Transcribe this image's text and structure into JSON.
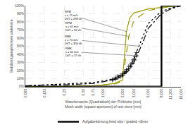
{
  "chart_data": {
    "type": "line",
    "xlabel": "Maschenweite (Quadratloch) der Prüfsiebe [mm]\nMesh width (square apertures) of test sieve [mm]",
    "ylabel": "Siebdürckgänge/screen undersize",
    "log": "x",
    "grid": true,
    "legend": "bottom",
    "xlim": [
      0.063,
      16.0
    ],
    "ylim": [
      0,
      100
    ],
    "xticks": [
      {
        "value": 0.063,
        "label": "0,063"
      },
      {
        "value": 0.125,
        "label": "0,125"
      },
      {
        "value": 0.25,
        "label": "0,25"
      },
      {
        "value": 0.5,
        "label": "0,50"
      },
      {
        "value": 0.71,
        "label": "0,71"
      },
      {
        "value": 1.0,
        "label": "1,000"
      },
      {
        "value": 2.0,
        "label": "2,000"
      },
      {
        "value": 3.0,
        "label": "3,000"
      },
      {
        "value": 5.0,
        "label": "5,000"
      },
      {
        "value": 8.0,
        "label": "8,000"
      },
      {
        "value": 11.2,
        "label": "11,200"
      },
      {
        "value": 16.0,
        "label": "16,000"
      }
    ],
    "yticks": [
      {
        "value": 0,
        "label": "0%"
      },
      {
        "value": 10,
        "label": "10%"
      },
      {
        "value": 20,
        "label": "20%"
      },
      {
        "value": 30,
        "label": "30%"
      },
      {
        "value": 40,
        "label": "40%"
      },
      {
        "value": 50,
        "label": "50%"
      },
      {
        "value": 60,
        "label": "60%"
      },
      {
        "value": 70,
        "label": "70%"
      },
      {
        "value": 80,
        "label": "80%"
      },
      {
        "value": 90,
        "label": "90%"
      },
      {
        "value": 100,
        "label": "100%"
      }
    ],
    "series": [
      {
        "type": "line",
        "color": "#9b9b00",
        "line_style": "solid",
        "x": [
          0.063,
          0.125,
          0.25,
          0.5,
          0.71,
          1.0,
          1.5,
          2.0,
          2.3,
          2.6,
          3.0,
          5.0,
          8.0,
          11.2,
          16.0
        ],
        "values": [
          0,
          0,
          0,
          1,
          1,
          2,
          4,
          8,
          68,
          85,
          91,
          96,
          98,
          99,
          100
        ]
      },
      {
        "type": "line",
        "color": "#9b9b00",
        "line_style": "dashed",
        "x": [
          0.063,
          0.125,
          0.25,
          0.5,
          0.71,
          1.0,
          1.5,
          2.0,
          2.5,
          3.0,
          5.0,
          8.0,
          11.2,
          16.0
        ],
        "values": [
          0,
          0,
          0,
          1,
          1,
          2,
          3,
          7,
          62,
          82,
          94,
          97,
          99,
          100
        ]
      },
      {
        "type": "line",
        "color": "#000000",
        "line_style": "dotted",
        "x": [
          0.063,
          0.125,
          0.25,
          0.5,
          0.71,
          1.0,
          1.5,
          2.0,
          2.5,
          3.0,
          4.0,
          5.0,
          8.0,
          11.2,
          16.0
        ],
        "values": [
          1,
          2,
          3,
          4,
          5,
          7,
          10,
          15,
          22,
          35,
          60,
          78,
          93,
          97,
          100
        ]
      },
      {
        "type": "line",
        "color": "#000000",
        "line_style": "dashdot",
        "x": [
          0.063,
          0.125,
          0.25,
          0.5,
          0.71,
          1.0,
          1.5,
          2.0,
          2.5,
          3.0,
          4.0,
          5.0,
          8.0,
          11.2,
          16.0
        ],
        "values": [
          1,
          2,
          2,
          3,
          4,
          6,
          9,
          13,
          20,
          30,
          52,
          72,
          90,
          96,
          100
        ]
      },
      {
        "type": "line",
        "name": "Aufgabekörnung feed size / graded +8mm",
        "color": "#000000",
        "line_style": "solid",
        "x": [
          0.063,
          0.125,
          0.25,
          0.5,
          0.71,
          1.0,
          2.0,
          3.0,
          5.0,
          8.0,
          8.001,
          11.2,
          16.0
        ],
        "values": [
          0,
          0,
          0,
          0,
          0,
          0,
          0,
          0,
          0,
          0,
          100,
          100,
          100
        ]
      },
      {
        "type": "scatter",
        "marker": "cross",
        "color": "#000000",
        "x": [
          1.4,
          1.55,
          1.7,
          1.85,
          2.0,
          2.15,
          2.3,
          2.5,
          2.7,
          2.9,
          3.1,
          3.3
        ],
        "values": [
          9,
          11,
          13,
          14,
          16,
          18,
          21,
          25,
          28,
          33,
          37,
          42
        ]
      },
      {
        "type": "scatter",
        "marker": "cross",
        "color": "#000000",
        "x": [
          1.4,
          1.55,
          1.7,
          1.85,
          2.0,
          2.15,
          2.3,
          2.5,
          2.7,
          2.9,
          3.1,
          3.3
        ],
        "values": [
          8,
          9,
          11,
          12,
          14,
          16,
          19,
          22,
          25,
          29,
          33,
          38
        ]
      }
    ],
    "annotations": [
      {
        "text": "RPM\nv = 71 m/s\nDt/T = 298 t/h",
        "x": 2.3,
        "y": 68,
        "text_x": 0.35,
        "text_y": 88
      },
      {
        "text": "RPM\nv = 65 m/s\nDt/T = 32 t/h",
        "x": 2.5,
        "y": 62,
        "text_x": 0.35,
        "text_y": 74
      },
      {
        "text": "RMK\nv = 71 m/s\nDt/T = 356 t/h",
        "x": 3.5,
        "y": 50,
        "text_x": 0.35,
        "text_y": 58
      },
      {
        "text": "RMK\nv = 65 m/s\nDt/T = 37 t/h",
        "x": 3.5,
        "y": 38,
        "text_x": 0.35,
        "text_y": 43
      }
    ]
  }
}
